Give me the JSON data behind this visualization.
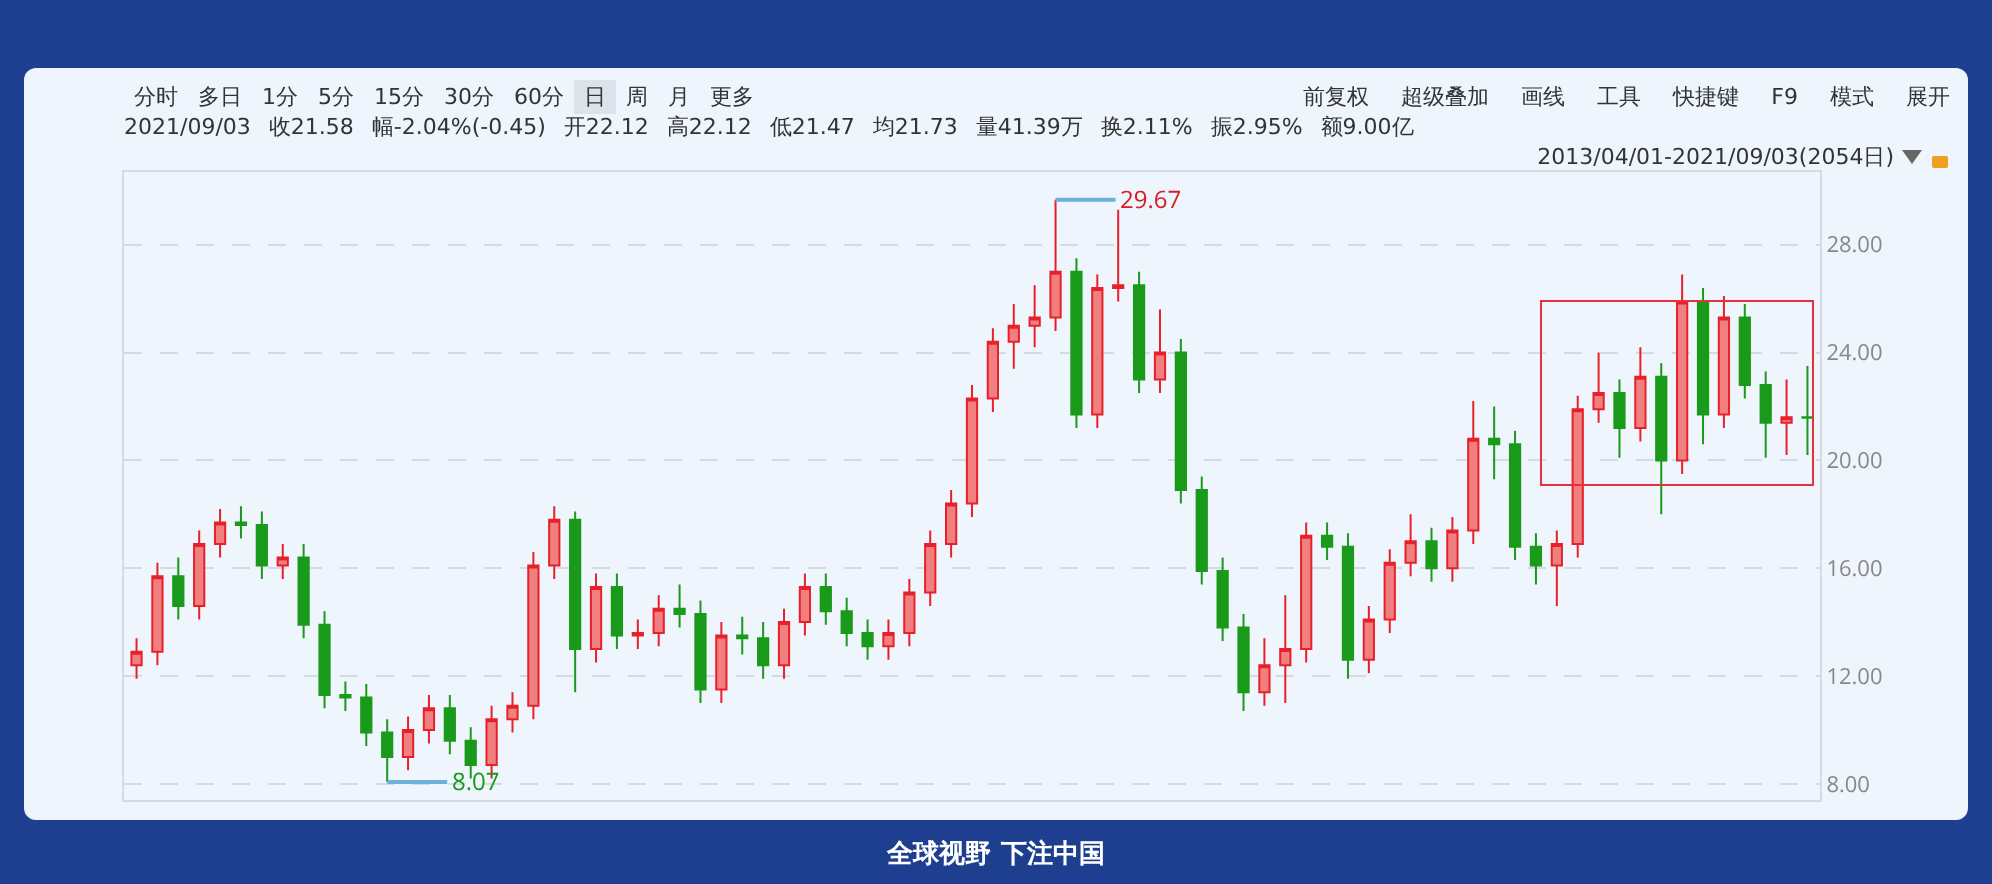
{
  "chart_data": {
    "type": "candlestick",
    "categories": [
      null,
      null,
      null,
      null,
      null,
      null,
      null,
      null,
      null,
      null,
      null,
      null,
      null,
      null,
      null,
      null,
      null,
      null,
      null,
      null,
      null,
      null,
      null,
      null,
      null,
      null,
      null,
      null,
      null,
      null,
      null,
      null,
      null,
      null,
      null,
      null,
      null,
      null,
      null,
      null,
      null,
      null,
      null,
      null,
      null,
      null,
      null,
      null,
      null,
      null,
      null,
      null,
      null,
      null,
      null,
      null,
      null,
      null,
      null,
      null,
      null,
      null,
      null,
      null,
      null,
      null,
      null,
      null,
      null,
      null,
      null,
      null,
      null,
      null,
      null,
      null,
      null,
      null,
      null,
      null,
      null
    ],
    "ohlc": [
      [
        12.4,
        13.4,
        11.9,
        12.9
      ],
      [
        12.9,
        16.2,
        12.4,
        15.7
      ],
      [
        15.7,
        16.4,
        14.1,
        14.6
      ],
      [
        14.6,
        17.4,
        14.1,
        16.9
      ],
      [
        16.9,
        18.2,
        16.4,
        17.7
      ],
      [
        17.7,
        18.3,
        17.1,
        17.6
      ],
      [
        17.6,
        18.1,
        15.6,
        16.1
      ],
      [
        16.1,
        16.9,
        15.6,
        16.4
      ],
      [
        16.4,
        16.9,
        13.4,
        13.9
      ],
      [
        13.9,
        14.4,
        10.8,
        11.3
      ],
      [
        11.3,
        11.8,
        10.7,
        11.2
      ],
      [
        11.2,
        11.7,
        9.4,
        9.9
      ],
      [
        9.9,
        10.4,
        8.07,
        9.0
      ],
      [
        9.0,
        10.5,
        8.5,
        10.0
      ],
      [
        10.0,
        11.3,
        9.5,
        10.8
      ],
      [
        10.8,
        11.3,
        9.1,
        9.6
      ],
      [
        9.6,
        10.1,
        8.2,
        8.7
      ],
      [
        8.7,
        10.9,
        8.2,
        10.4
      ],
      [
        10.4,
        11.4,
        9.9,
        10.9
      ],
      [
        10.9,
        16.6,
        10.4,
        16.1
      ],
      [
        16.1,
        18.3,
        15.6,
        17.8
      ],
      [
        17.8,
        18.1,
        11.4,
        13.0
      ],
      [
        13.0,
        15.8,
        12.5,
        15.3
      ],
      [
        15.3,
        15.8,
        13.0,
        13.5
      ],
      [
        13.5,
        14.1,
        13.0,
        13.6
      ],
      [
        13.6,
        15.0,
        13.1,
        14.5
      ],
      [
        14.5,
        15.4,
        13.8,
        14.3
      ],
      [
        14.3,
        14.8,
        11.0,
        11.5
      ],
      [
        11.5,
        14.0,
        11.0,
        13.5
      ],
      [
        13.5,
        14.2,
        12.8,
        13.4
      ],
      [
        13.4,
        14.0,
        11.9,
        12.4
      ],
      [
        12.4,
        14.5,
        11.9,
        14.0
      ],
      [
        14.0,
        15.8,
        13.5,
        15.3
      ],
      [
        15.3,
        15.8,
        13.9,
        14.4
      ],
      [
        14.4,
        14.9,
        13.1,
        13.6
      ],
      [
        13.6,
        14.1,
        12.6,
        13.1
      ],
      [
        13.1,
        14.1,
        12.6,
        13.6
      ],
      [
        13.6,
        15.6,
        13.1,
        15.1
      ],
      [
        15.1,
        17.4,
        14.6,
        16.9
      ],
      [
        16.9,
        18.9,
        16.4,
        18.4
      ],
      [
        18.4,
        22.8,
        17.9,
        22.3
      ],
      [
        22.3,
        24.9,
        21.8,
        24.4
      ],
      [
        24.4,
        25.8,
        23.4,
        25.0
      ],
      [
        25.0,
        26.5,
        24.2,
        25.3
      ],
      [
        25.3,
        29.67,
        24.8,
        27.0
      ],
      [
        27.0,
        27.5,
        21.2,
        21.7
      ],
      [
        21.7,
        26.9,
        21.2,
        26.4
      ],
      [
        26.4,
        29.3,
        25.9,
        26.5
      ],
      [
        26.5,
        27.0,
        22.5,
        23.0
      ],
      [
        23.0,
        25.6,
        22.5,
        24.0
      ],
      [
        24.0,
        24.5,
        18.4,
        18.9
      ],
      [
        18.9,
        19.4,
        15.4,
        15.9
      ],
      [
        15.9,
        16.4,
        13.3,
        13.8
      ],
      [
        13.8,
        14.3,
        10.7,
        11.4
      ],
      [
        11.4,
        13.4,
        10.9,
        12.4
      ],
      [
        12.4,
        15.0,
        11.0,
        13.0
      ],
      [
        13.0,
        17.7,
        12.5,
        17.2
      ],
      [
        17.2,
        17.7,
        16.3,
        16.8
      ],
      [
        16.8,
        17.3,
        11.9,
        12.6
      ],
      [
        12.6,
        14.6,
        12.1,
        14.1
      ],
      [
        14.1,
        16.7,
        13.6,
        16.2
      ],
      [
        16.2,
        18.0,
        15.7,
        17.0
      ],
      [
        17.0,
        17.5,
        15.5,
        16.0
      ],
      [
        16.0,
        17.9,
        15.5,
        17.4
      ],
      [
        17.4,
        22.2,
        16.9,
        20.8
      ],
      [
        20.8,
        22.0,
        19.3,
        20.6
      ],
      [
        20.6,
        21.1,
        16.3,
        16.8
      ],
      [
        16.8,
        17.3,
        15.4,
        16.1
      ],
      [
        16.1,
        17.4,
        14.6,
        16.9
      ],
      [
        16.9,
        22.4,
        16.4,
        21.9
      ],
      [
        21.9,
        24.0,
        21.4,
        22.5
      ],
      [
        22.5,
        23.0,
        20.1,
        21.2
      ],
      [
        21.2,
        24.2,
        20.7,
        23.1
      ],
      [
        23.1,
        23.6,
        18.0,
        20.0
      ],
      [
        20.0,
        26.9,
        19.5,
        25.9
      ],
      [
        25.9,
        26.4,
        20.6,
        21.7
      ],
      [
        21.7,
        26.1,
        21.2,
        25.3
      ],
      [
        25.3,
        25.8,
        22.3,
        22.8
      ],
      [
        22.8,
        23.3,
        20.1,
        21.4
      ],
      [
        21.4,
        23.0,
        20.2,
        21.6
      ],
      [
        21.6,
        23.5,
        20.2,
        21.58
      ]
    ],
    "ylim": [
      7.4,
      30.7
    ],
    "yticks": [
      {
        "value": 8,
        "label": "8.00"
      },
      {
        "value": 12,
        "label": "12.00"
      },
      {
        "value": 16,
        "label": "16.00"
      },
      {
        "value": 20,
        "label": "20.00"
      },
      {
        "value": 24,
        "label": "24.00"
      },
      {
        "value": 28,
        "label": "28.00"
      }
    ],
    "grid": "y",
    "tick_labels": "y",
    "annotations": [
      "分时",
      "多日",
      "1分",
      "5分",
      "15分",
      "30分",
      "60分",
      "日",
      "周",
      "月",
      "更多",
      "前复权",
      "超级叠加",
      "画线",
      "工具",
      "快捷键",
      "F9",
      "模式",
      "展开",
      "2021/09/03",
      "收21.58",
      "幅-2.04%(-0.45)",
      "开22.12",
      "高22.12",
      "低21.47",
      "均21.73",
      "量41.39万",
      "换2.11%",
      "振2.95%",
      "额9.00亿",
      "2013/04/01-2021/09/03(2054日)",
      "全球视野 下注中国",
      "29.67",
      "8.07"
    ]
  }
}
